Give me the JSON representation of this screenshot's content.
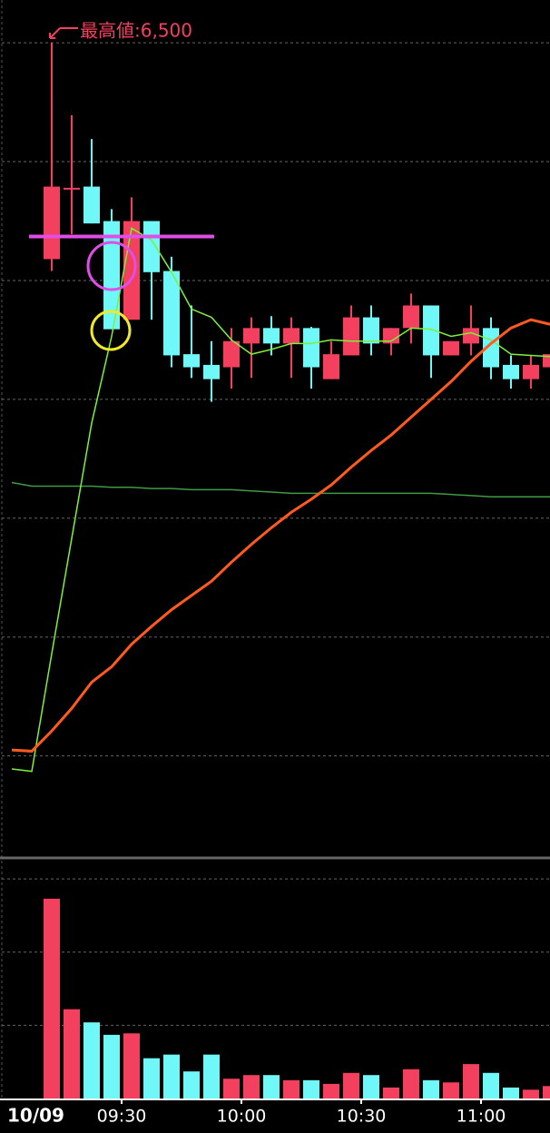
{
  "chart_data": {
    "type": "candlestick",
    "annotation": "最高値:6,500",
    "date": "10/09",
    "categories": [
      null,
      null,
      null,
      null,
      null,
      null,
      "09:30",
      null,
      null,
      null,
      null,
      null,
      "10:00",
      null,
      null,
      null,
      null,
      null,
      "10:30",
      null,
      null,
      null,
      null,
      null,
      "11:00",
      null,
      null,
      null
    ],
    "open": [
      null,
      null,
      6318,
      6378,
      6379,
      6350,
      6267,
      6350,
      6308,
      6238,
      6229,
      6227,
      6247,
      6260,
      6247,
      6260,
      6217,
      6237,
      6269,
      6247,
      6260,
      6279,
      6237,
      6247,
      6260,
      6229,
      6217,
      6227
    ],
    "high": [
      null,
      null,
      6500,
      6439,
      6419,
      6360,
      6370,
      6350,
      6320,
      6279,
      6249,
      6260,
      6269,
      6270,
      6269,
      6261,
      6249,
      6279,
      6279,
      6260,
      6289,
      6279,
      6249,
      6279,
      6269,
      6237,
      6237,
      6238
    ],
    "low": [
      null,
      null,
      6308,
      6339,
      6348,
      6259,
      6267,
      6267,
      6227,
      6218,
      6198,
      6209,
      6218,
      6237,
      6218,
      6209,
      6217,
      6237,
      6237,
      6237,
      6247,
      6218,
      6237,
      6237,
      6217,
      6209,
      6209,
      6227
    ],
    "close": [
      null,
      null,
      6379,
      6378,
      6348,
      6259,
      6350,
      6307,
      6237,
      6227,
      6217,
      6249,
      6260,
      6247,
      6260,
      6227,
      6238,
      6269,
      6247,
      6260,
      6279,
      6237,
      6249,
      6260,
      6227,
      6217,
      6229,
      6238
    ],
    "up_color": "#f2405e",
    "down_color": "#70f7f7",
    "ylim": [
      5818,
      6536
    ],
    "grid_lines": [
      6500,
      6400,
      6300,
      6200,
      6100,
      6000,
      5900
    ],
    "reference_price": 6337,
    "moving_averages": [
      {
        "color": "#3f9a45",
        "width": 1.5,
        "values": [
          6130,
          6127,
          6127,
          6127,
          6127,
          6126,
          6126,
          6125,
          6125,
          6124,
          6124,
          6124,
          6123,
          6122,
          6121,
          6121,
          6121,
          6121,
          6121,
          6121,
          6121,
          6121,
          6120,
          6119,
          6118,
          6118,
          6118,
          6118
        ]
      },
      {
        "color": "#7ef03a",
        "width": 1.5,
        "values": [
          5889,
          5887,
          5986,
          6083,
          6180,
          6253,
          6344,
          6334,
          6307,
          6276,
          6269,
          6250,
          6238,
          6242,
          6247,
          6247,
          6250,
          6249,
          6249,
          6249,
          6260,
          6259,
          6253,
          6256,
          6250,
          6238,
          6237,
          6236
        ]
      },
      {
        "color": "#ff5a1f",
        "width": 3,
        "values": [
          5905,
          5904,
          5921,
          5940,
          5962,
          5975,
          5994,
          6009,
          6023,
          6035,
          6047,
          6063,
          6078,
          6092,
          6105,
          6116,
          6128,
          6143,
          6157,
          6170,
          6185,
          6200,
          6215,
          6232,
          6247,
          6260,
          6267,
          6263
        ]
      }
    ],
    "volume": {
      "values": [
        null,
        null,
        2.73,
        1.22,
        1.04,
        0.87,
        0.89,
        0.55,
        0.6,
        0.37,
        0.6,
        0.27,
        0.32,
        0.32,
        0.25,
        0.25,
        0.2,
        0.35,
        0.32,
        0.15,
        0.4,
        0.25,
        0.22,
        0.47,
        0.35,
        0.15,
        0.12,
        0.17
      ],
      "ylim": [
        0,
        3.25
      ],
      "grid_lines": [
        1,
        2,
        3
      ]
    }
  }
}
